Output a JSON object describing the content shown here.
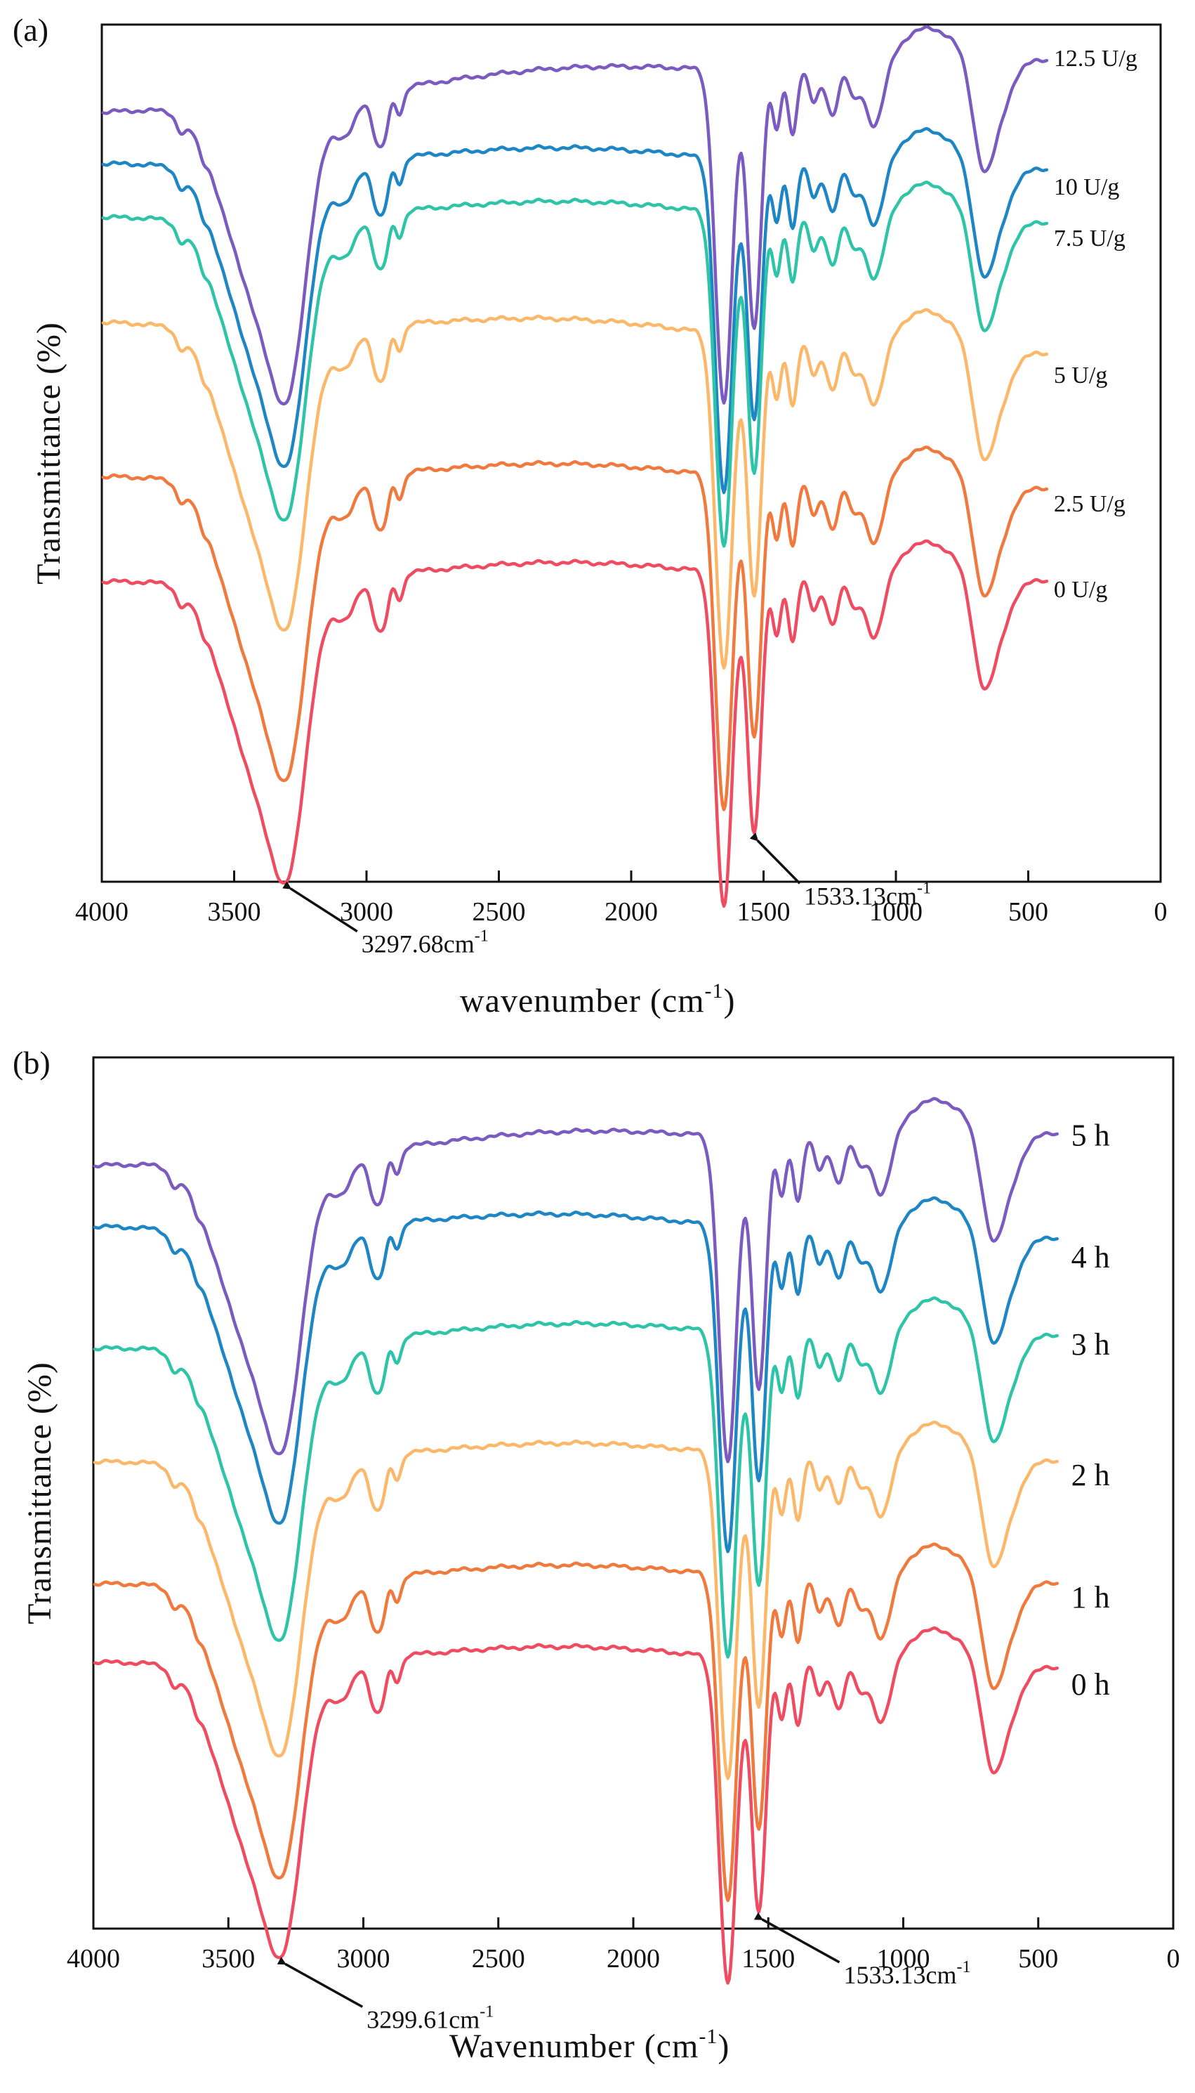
{
  "colors": {
    "purple": "#7b5bbf",
    "blue": "#1e86c4",
    "teal": "#2fc4a8",
    "light_orange": "#fcb86a",
    "orange": "#f0793e",
    "red": "#ef4c62"
  },
  "chart_data": [
    {
      "type": "line",
      "panel_label": "(a)",
      "xlabel": "wavenumber (cm",
      "xlabel_sup": "-1",
      "xlabel_close": ")",
      "ylabel": "Transmittance (%)",
      "xlim": [
        4000,
        0
      ],
      "x_ticks": [
        "4000",
        "3500",
        "3000",
        "2500",
        "2000",
        "1500",
        "1000",
        "500",
        "0"
      ],
      "x_tick_values": [
        4000,
        3500,
        3000,
        2500,
        2000,
        1500,
        1000,
        500,
        0
      ],
      "series": [
        {
          "name": "12.5 U/g",
          "color": "#7b5bbf",
          "baseline": 0.92,
          "start": 0.89,
          "end": 0.97,
          "endpoint_y": 0.96
        },
        {
          "name": "10 U/g",
          "color": "#1e86c4",
          "baseline": 0.86,
          "start": 0.83,
          "end": 0.82,
          "endpoint_y": 0.81
        },
        {
          "name": "7.5 U/g",
          "color": "#2fc4a8",
          "baseline": 0.79,
          "start": 0.77,
          "end": 0.76,
          "endpoint_y": 0.75
        },
        {
          "name": "5 U/g",
          "color": "#fcb86a",
          "baseline": 0.66,
          "start": 0.65,
          "end": 0.6,
          "endpoint_y": 0.59
        },
        {
          "name": "2.5 U/g",
          "color": "#f0793e",
          "baseline": 0.48,
          "start": 0.47,
          "end": 0.45,
          "endpoint_y": 0.44
        },
        {
          "name": "0 U/g",
          "color": "#ef4c62",
          "baseline": 0.35,
          "start": 0.35,
          "end": 0.35,
          "endpoint_y": 0.34
        }
      ],
      "annotations": [
        {
          "text": "3297.68cm",
          "sup": "-1",
          "x": 3297.68
        },
        {
          "text": "1533.13cm",
          "sup": "-1",
          "x": 1533.13
        }
      ]
    },
    {
      "type": "line",
      "panel_label": "(b)",
      "xlabel": "Wavenumber (cm",
      "xlabel_sup": "-1",
      "xlabel_close": ")",
      "ylabel": "Transmittance (%)",
      "xlim": [
        4000,
        0
      ],
      "x_ticks": [
        "4000",
        "3500",
        "3000",
        "2500",
        "2000",
        "1500",
        "1000",
        "500",
        "0"
      ],
      "x_tick_values": [
        4000,
        3500,
        3000,
        2500,
        2000,
        1500,
        1000,
        500,
        0
      ],
      "series": [
        {
          "name": "5 h",
          "color": "#7b5bbf",
          "baseline": 0.89,
          "start": 0.87,
          "end": 0.92,
          "endpoint_y": 0.91
        },
        {
          "name": "4 h",
          "color": "#1e86c4",
          "baseline": 0.82,
          "start": 0.8,
          "end": 0.78,
          "endpoint_y": 0.77
        },
        {
          "name": "3 h",
          "color": "#2fc4a8",
          "baseline": 0.68,
          "start": 0.66,
          "end": 0.68,
          "endpoint_y": 0.67
        },
        {
          "name": "2 h",
          "color": "#fcb86a",
          "baseline": 0.55,
          "start": 0.53,
          "end": 0.53,
          "endpoint_y": 0.52
        },
        {
          "name": "1 h",
          "color": "#f0793e",
          "baseline": 0.41,
          "start": 0.39,
          "end": 0.39,
          "endpoint_y": 0.38
        },
        {
          "name": "0 h",
          "color": "#ef4c62",
          "baseline": 0.32,
          "start": 0.3,
          "end": 0.29,
          "endpoint_y": 0.28
        }
      ],
      "annotations": [
        {
          "text": "3299.61cm",
          "sup": "-1",
          "x": 3299.61
        },
        {
          "text": "1533.13cm",
          "sup": "-1",
          "x": 1533.13
        }
      ]
    }
  ]
}
